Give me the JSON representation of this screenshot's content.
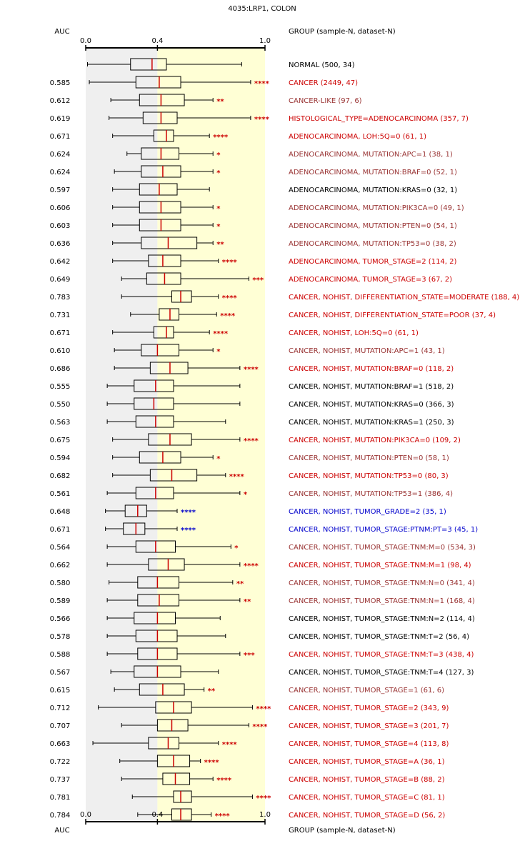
{
  "chart_data": {
    "type": "boxplot",
    "title": "4035:LRP1, COLON",
    "auc_header": "AUC",
    "group_header": "GROUP (sample-N, dataset-N)",
    "axis": {
      "ticks": [
        {
          "value": 0.0,
          "label": "0.0"
        },
        {
          "value": 0.4,
          "label": "0.4"
        },
        {
          "value": 1.0,
          "label": "1.0"
        }
      ],
      "range": [
        0.0,
        1.0
      ]
    },
    "reference_band": {
      "normal_q1": 0.4
    },
    "colors": {
      "red": "#cc0000",
      "darkred": "#993333",
      "black": "#000000",
      "blue": "#0000cc",
      "median": "#cc0000",
      "band_gray": "#efefef",
      "band_yellow": "#ffffd5",
      "star": "#cc0000",
      "star_blue": "#0000cc"
    },
    "rows": [
      {
        "auc": "",
        "group": "NORMAL (500, 34)",
        "color": "black",
        "stars": "",
        "whisker_lo": 0.01,
        "q1": 0.25,
        "median": 0.37,
        "q3": 0.45,
        "whisker_hi": 0.87
      },
      {
        "auc": "0.585",
        "group": "CANCER (2449, 47)",
        "color": "red",
        "stars": "****",
        "whisker_lo": 0.02,
        "q1": 0.28,
        "median": 0.41,
        "q3": 0.53,
        "whisker_hi": 0.92
      },
      {
        "auc": "0.612",
        "group": "CANCER-LIKE (97, 6)",
        "color": "darkred",
        "stars": "**",
        "whisker_lo": 0.14,
        "q1": 0.3,
        "median": 0.42,
        "q3": 0.55,
        "whisker_hi": 0.71
      },
      {
        "auc": "0.619",
        "group": "HISTOLOGICAL_TYPE=ADENOCARCINOMA (357, 7)",
        "color": "red",
        "stars": "****",
        "whisker_lo": 0.13,
        "q1": 0.32,
        "median": 0.42,
        "q3": 0.51,
        "whisker_hi": 0.92
      },
      {
        "auc": "0.671",
        "group": "ADENOCARCINOMA, LOH:5Q=0 (61, 1)",
        "color": "red",
        "stars": "****",
        "whisker_lo": 0.15,
        "q1": 0.38,
        "median": 0.45,
        "q3": 0.49,
        "whisker_hi": 0.69
      },
      {
        "auc": "0.624",
        "group": "ADENOCARCINOMA, MUTATION:APC=1 (38, 1)",
        "color": "darkred",
        "stars": "*",
        "whisker_lo": 0.23,
        "q1": 0.31,
        "median": 0.42,
        "q3": 0.52,
        "whisker_hi": 0.71
      },
      {
        "auc": "0.624",
        "group": "ADENOCARCINOMA, MUTATION:BRAF=0 (52, 1)",
        "color": "darkred",
        "stars": "*",
        "whisker_lo": 0.16,
        "q1": 0.31,
        "median": 0.43,
        "q3": 0.53,
        "whisker_hi": 0.71
      },
      {
        "auc": "0.597",
        "group": "ADENOCARCINOMA, MUTATION:KRAS=0 (32, 1)",
        "color": "black",
        "stars": "",
        "whisker_lo": 0.15,
        "q1": 0.3,
        "median": 0.41,
        "q3": 0.51,
        "whisker_hi": 0.69
      },
      {
        "auc": "0.606",
        "group": "ADENOCARCINOMA, MUTATION:PIK3CA=0 (49, 1)",
        "color": "darkred",
        "stars": "*",
        "whisker_lo": 0.15,
        "q1": 0.3,
        "median": 0.42,
        "q3": 0.53,
        "whisker_hi": 0.71
      },
      {
        "auc": "0.603",
        "group": "ADENOCARCINOMA, MUTATION:PTEN=0 (54, 1)",
        "color": "darkred",
        "stars": "*",
        "whisker_lo": 0.15,
        "q1": 0.3,
        "median": 0.42,
        "q3": 0.53,
        "whisker_hi": 0.71
      },
      {
        "auc": "0.636",
        "group": "ADENOCARCINOMA, MUTATION:TP53=0 (38, 2)",
        "color": "darkred",
        "stars": "**",
        "whisker_lo": 0.15,
        "q1": 0.31,
        "median": 0.46,
        "q3": 0.62,
        "whisker_hi": 0.71
      },
      {
        "auc": "0.642",
        "group": "ADENOCARCINOMA, TUMOR_STAGE=2 (114, 2)",
        "color": "red",
        "stars": "****",
        "whisker_lo": 0.15,
        "q1": 0.35,
        "median": 0.43,
        "q3": 0.53,
        "whisker_hi": 0.74
      },
      {
        "auc": "0.649",
        "group": "ADENOCARCINOMA, TUMOR_STAGE=3 (67, 2)",
        "color": "red",
        "stars": "***",
        "whisker_lo": 0.2,
        "q1": 0.34,
        "median": 0.44,
        "q3": 0.53,
        "whisker_hi": 0.91
      },
      {
        "auc": "0.783",
        "group": "CANCER, NOHIST, DIFFERENTIATION_STATE=MODERATE (188, 4)",
        "color": "red",
        "stars": "****",
        "whisker_lo": 0.2,
        "q1": 0.48,
        "median": 0.53,
        "q3": 0.59,
        "whisker_hi": 0.74
      },
      {
        "auc": "0.731",
        "group": "CANCER, NOHIST, DIFFERENTIATION_STATE=POOR (37, 4)",
        "color": "red",
        "stars": "****",
        "whisker_lo": 0.25,
        "q1": 0.41,
        "median": 0.47,
        "q3": 0.52,
        "whisker_hi": 0.73
      },
      {
        "auc": "0.671",
        "group": "CANCER, NOHIST, LOH:5Q=0 (61, 1)",
        "color": "red",
        "stars": "****",
        "whisker_lo": 0.15,
        "q1": 0.38,
        "median": 0.45,
        "q3": 0.49,
        "whisker_hi": 0.69
      },
      {
        "auc": "0.610",
        "group": "CANCER, NOHIST, MUTATION:APC=1 (43, 1)",
        "color": "darkred",
        "stars": "*",
        "whisker_lo": 0.16,
        "q1": 0.31,
        "median": 0.4,
        "q3": 0.52,
        "whisker_hi": 0.71
      },
      {
        "auc": "0.686",
        "group": "CANCER, NOHIST, MUTATION:BRAF=0 (118, 2)",
        "color": "red",
        "stars": "****",
        "whisker_lo": 0.16,
        "q1": 0.36,
        "median": 0.47,
        "q3": 0.57,
        "whisker_hi": 0.86
      },
      {
        "auc": "0.555",
        "group": "CANCER, NOHIST, MUTATION:BRAF=1 (518, 2)",
        "color": "black",
        "stars": "",
        "whisker_lo": 0.12,
        "q1": 0.27,
        "median": 0.39,
        "q3": 0.49,
        "whisker_hi": 0.86
      },
      {
        "auc": "0.550",
        "group": "CANCER, NOHIST, MUTATION:KRAS=0 (366, 3)",
        "color": "black",
        "stars": "",
        "whisker_lo": 0.12,
        "q1": 0.27,
        "median": 0.38,
        "q3": 0.49,
        "whisker_hi": 0.86
      },
      {
        "auc": "0.563",
        "group": "CANCER, NOHIST, MUTATION:KRAS=1 (250, 3)",
        "color": "black",
        "stars": "",
        "whisker_lo": 0.12,
        "q1": 0.28,
        "median": 0.39,
        "q3": 0.49,
        "whisker_hi": 0.78
      },
      {
        "auc": "0.675",
        "group": "CANCER, NOHIST, MUTATION:PIK3CA=0 (109, 2)",
        "color": "red",
        "stars": "****",
        "whisker_lo": 0.15,
        "q1": 0.35,
        "median": 0.47,
        "q3": 0.59,
        "whisker_hi": 0.86
      },
      {
        "auc": "0.594",
        "group": "CANCER, NOHIST, MUTATION:PTEN=0 (58, 1)",
        "color": "darkred",
        "stars": "*",
        "whisker_lo": 0.15,
        "q1": 0.3,
        "median": 0.43,
        "q3": 0.53,
        "whisker_hi": 0.71
      },
      {
        "auc": "0.682",
        "group": "CANCER, NOHIST, MUTATION:TP53=0 (80, 3)",
        "color": "red",
        "stars": "****",
        "whisker_lo": 0.15,
        "q1": 0.36,
        "median": 0.48,
        "q3": 0.62,
        "whisker_hi": 0.78
      },
      {
        "auc": "0.561",
        "group": "CANCER, NOHIST, MUTATION:TP53=1 (386, 4)",
        "color": "darkred",
        "stars": "*",
        "whisker_lo": 0.12,
        "q1": 0.28,
        "median": 0.39,
        "q3": 0.49,
        "whisker_hi": 0.86
      },
      {
        "auc": "0.648",
        "group": "CANCER, NOHIST, TUMOR_GRADE=2 (35, 1)",
        "color": "blue",
        "stars": "****",
        "whisker_lo": 0.11,
        "q1": 0.22,
        "median": 0.29,
        "q3": 0.34,
        "whisker_hi": 0.51
      },
      {
        "auc": "0.671",
        "group": "CANCER, NOHIST, TUMOR_STAGE:PTNM:PT=3 (45, 1)",
        "color": "blue",
        "stars": "****",
        "whisker_lo": 0.11,
        "q1": 0.21,
        "median": 0.28,
        "q3": 0.33,
        "whisker_hi": 0.51
      },
      {
        "auc": "0.564",
        "group": "CANCER, NOHIST, TUMOR_STAGE:TNM:M=0 (534, 3)",
        "color": "darkred",
        "stars": "*",
        "whisker_lo": 0.12,
        "q1": 0.28,
        "median": 0.39,
        "q3": 0.5,
        "whisker_hi": 0.81
      },
      {
        "auc": "0.662",
        "group": "CANCER, NOHIST, TUMOR_STAGE:TNM:M=1 (98, 4)",
        "color": "red",
        "stars": "****",
        "whisker_lo": 0.12,
        "q1": 0.35,
        "median": 0.46,
        "q3": 0.55,
        "whisker_hi": 0.86
      },
      {
        "auc": "0.580",
        "group": "CANCER, NOHIST, TUMOR_STAGE:TNM:N=0 (341, 4)",
        "color": "darkred",
        "stars": "**",
        "whisker_lo": 0.13,
        "q1": 0.29,
        "median": 0.4,
        "q3": 0.52,
        "whisker_hi": 0.82
      },
      {
        "auc": "0.589",
        "group": "CANCER, NOHIST, TUMOR_STAGE:TNM:N=1 (168, 4)",
        "color": "darkred",
        "stars": "**",
        "whisker_lo": 0.12,
        "q1": 0.29,
        "median": 0.41,
        "q3": 0.52,
        "whisker_hi": 0.86
      },
      {
        "auc": "0.566",
        "group": "CANCER, NOHIST, TUMOR_STAGE:TNM:N=2 (114, 4)",
        "color": "black",
        "stars": "",
        "whisker_lo": 0.12,
        "q1": 0.27,
        "median": 0.4,
        "q3": 0.5,
        "whisker_hi": 0.75
      },
      {
        "auc": "0.578",
        "group": "CANCER, NOHIST, TUMOR_STAGE:TNM:T=2 (56, 4)",
        "color": "black",
        "stars": "",
        "whisker_lo": 0.12,
        "q1": 0.28,
        "median": 0.4,
        "q3": 0.51,
        "whisker_hi": 0.78
      },
      {
        "auc": "0.588",
        "group": "CANCER, NOHIST, TUMOR_STAGE:TNM:T=3 (438, 4)",
        "color": "red",
        "stars": "***",
        "whisker_lo": 0.12,
        "q1": 0.29,
        "median": 0.4,
        "q3": 0.51,
        "whisker_hi": 0.86
      },
      {
        "auc": "0.567",
        "group": "CANCER, NOHIST, TUMOR_STAGE:TNM:T=4 (127, 3)",
        "color": "black",
        "stars": "",
        "whisker_lo": 0.14,
        "q1": 0.27,
        "median": 0.4,
        "q3": 0.53,
        "whisker_hi": 0.74
      },
      {
        "auc": "0.615",
        "group": "CANCER, NOHIST, TUMOR_STAGE=1 (61, 6)",
        "color": "darkred",
        "stars": "**",
        "whisker_lo": 0.16,
        "q1": 0.3,
        "median": 0.43,
        "q3": 0.55,
        "whisker_hi": 0.66
      },
      {
        "auc": "0.712",
        "group": "CANCER, NOHIST, TUMOR_STAGE=2 (343, 9)",
        "color": "red",
        "stars": "****",
        "whisker_lo": 0.07,
        "q1": 0.39,
        "median": 0.49,
        "q3": 0.59,
        "whisker_hi": 0.93
      },
      {
        "auc": "0.707",
        "group": "CANCER, NOHIST, TUMOR_STAGE=3 (201, 7)",
        "color": "red",
        "stars": "****",
        "whisker_lo": 0.2,
        "q1": 0.4,
        "median": 0.48,
        "q3": 0.57,
        "whisker_hi": 0.91
      },
      {
        "auc": "0.663",
        "group": "CANCER, NOHIST, TUMOR_STAGE=4 (113, 8)",
        "color": "red",
        "stars": "****",
        "whisker_lo": 0.04,
        "q1": 0.35,
        "median": 0.46,
        "q3": 0.52,
        "whisker_hi": 0.74
      },
      {
        "auc": "0.722",
        "group": "CANCER, NOHIST, TUMOR_STAGE=A (36, 1)",
        "color": "red",
        "stars": "****",
        "whisker_lo": 0.19,
        "q1": 0.4,
        "median": 0.49,
        "q3": 0.58,
        "whisker_hi": 0.64
      },
      {
        "auc": "0.737",
        "group": "CANCER, NOHIST, TUMOR_STAGE=B (88, 2)",
        "color": "red",
        "stars": "****",
        "whisker_lo": 0.2,
        "q1": 0.43,
        "median": 0.5,
        "q3": 0.58,
        "whisker_hi": 0.71
      },
      {
        "auc": "0.781",
        "group": "CANCER, NOHIST, TUMOR_STAGE=C (81, 1)",
        "color": "red",
        "stars": "****",
        "whisker_lo": 0.26,
        "q1": 0.49,
        "median": 0.53,
        "q3": 0.59,
        "whisker_hi": 0.93
      },
      {
        "auc": "0.784",
        "group": "CANCER, NOHIST, TUMOR_STAGE=D (56, 2)",
        "color": "red",
        "stars": "****",
        "whisker_lo": 0.29,
        "q1": 0.48,
        "median": 0.53,
        "q3": 0.59,
        "whisker_hi": 0.7
      }
    ]
  }
}
